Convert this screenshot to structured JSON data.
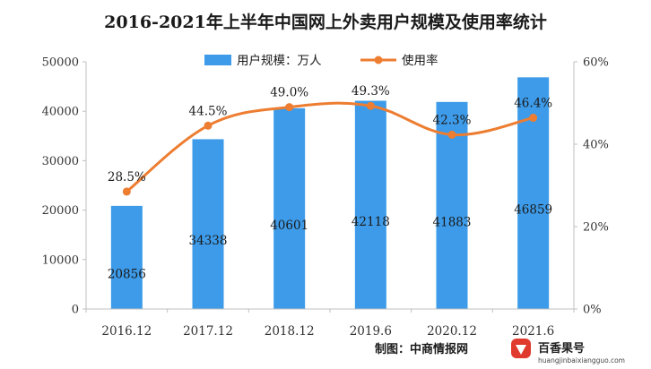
{
  "chart_data": {
    "type": "bar",
    "title": "2016-2021年上半年中国网上外卖用户规模及使用率统计",
    "categories": [
      "2016.12",
      "2017.12",
      "2018.12",
      "2019.6",
      "2020.12",
      "2021.6"
    ],
    "series": [
      {
        "name": "用户规模：万人",
        "type": "bar",
        "axis": "left",
        "values": [
          20856,
          34338,
          40601,
          42118,
          41883,
          46859
        ],
        "color": "#3d9be9"
      },
      {
        "name": "使用率",
        "type": "line",
        "axis": "right",
        "values": [
          28.5,
          44.5,
          49.0,
          49.3,
          42.3,
          46.4
        ],
        "labels": [
          "28.5%",
          "44.5%",
          "49.0%",
          "49.3%",
          "42.3%",
          "46.4%"
        ],
        "color": "#ed7d31"
      }
    ],
    "y_left": {
      "min": 0,
      "max": 50000,
      "ticks": [
        "0",
        "10000",
        "20000",
        "30000",
        "40000",
        "50000"
      ]
    },
    "y_right": {
      "min": 0,
      "max": 60,
      "ticks": [
        "0%",
        "20%",
        "40%",
        "60%"
      ]
    },
    "legend_position": "top",
    "grid": false
  },
  "credit": "制图：中商情报网",
  "watermark": {
    "brand": "百香果号",
    "site": "huangjinbaixiangguo.com"
  }
}
